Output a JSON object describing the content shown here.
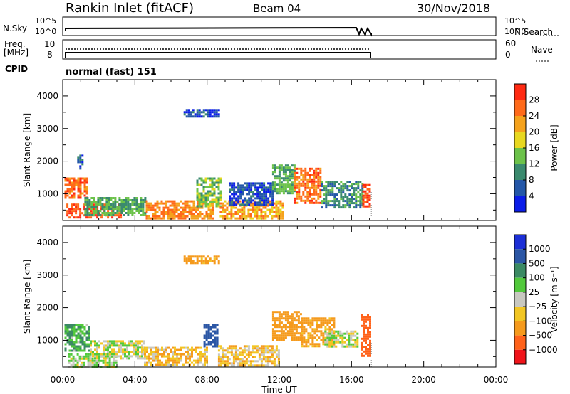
{
  "header": {
    "station": "Rankin Inlet (fitACF)",
    "beam": "Beam 04",
    "date": "30/Nov/2018"
  },
  "panels": {
    "nsky_label": "N.Sky",
    "nsearch_label": "N.Search",
    "freq_label": "Freq.",
    "freq_unit": "[MHz]",
    "nave_label": "Nave",
    "cpid_label": "CPID",
    "cpid_value": "normal (fast) 151",
    "left_ticks_top": [
      "10^5",
      "10^0"
    ],
    "right_ticks_top": [
      "10^5",
      "10^0"
    ],
    "left_ticks_freq": [
      "10",
      "8"
    ],
    "right_ticks_nave": [
      "60",
      "0"
    ]
  },
  "axes": {
    "xlabel": "Time UT",
    "xticks": [
      "00:00",
      "04:00",
      "08:00",
      "12:00",
      "16:00",
      "20:00",
      "00:00"
    ],
    "ylabel": "Slant Range [km]",
    "yticks": [
      "1000",
      "2000",
      "3000",
      "4000"
    ]
  },
  "power_bar": {
    "label": "Power [dB]",
    "ticks": [
      "4",
      "8",
      "12",
      "16",
      "20",
      "24",
      "28"
    ],
    "colors": [
      "#0b1de8",
      "#2457a8",
      "#3a8a6e",
      "#6cc24a",
      "#e8d820",
      "#f5a21c",
      "#ff6a1a",
      "#ff2a12"
    ]
  },
  "velocity_bar": {
    "label": "Velocity [m s⁻¹]",
    "ticks": [
      "1000",
      "500",
      "100",
      "25",
      "−25",
      "−100",
      "−500",
      "−1000"
    ],
    "colors": [
      "#1c2fd6",
      "#2b56a5",
      "#3b8a63",
      "#52c93c",
      "#c8c8c0",
      "#f2c623",
      "#f59a1c",
      "#ff621a",
      "#f0141a"
    ]
  },
  "chart_data": [
    {
      "type": "heatmap",
      "title": "Power",
      "xlabel": "Time UT",
      "ylabel": "Slant Range [km]",
      "xlim": [
        0,
        24
      ],
      "ylim": [
        180,
        4500
      ],
      "colorbar": "Power [dB]",
      "data_end_hour": 17.1,
      "blobs": [
        {
          "t0": 0.1,
          "t1": 1.3,
          "r0": 900,
          "r1": 1500,
          "v": 26
        },
        {
          "t0": 0.2,
          "t1": 3.2,
          "r0": 250,
          "r1": 700,
          "v": 28
        },
        {
          "t0": 1.2,
          "t1": 4.6,
          "r0": 350,
          "r1": 900,
          "v": 12
        },
        {
          "t0": 4.6,
          "t1": 8.3,
          "r0": 250,
          "r1": 800,
          "v": 24
        },
        {
          "t0": 7.4,
          "t1": 8.8,
          "r0": 600,
          "r1": 1500,
          "v": 14
        },
        {
          "t0": 8.7,
          "t1": 12.2,
          "r0": 250,
          "r1": 800,
          "v": 22
        },
        {
          "t0": 9.2,
          "t1": 11.6,
          "r0": 650,
          "r1": 1350,
          "v": 5
        },
        {
          "t0": 11.6,
          "t1": 12.8,
          "r0": 1000,
          "r1": 1900,
          "v": 12
        },
        {
          "t0": 12.8,
          "t1": 14.3,
          "r0": 700,
          "r1": 1800,
          "v": 26
        },
        {
          "t0": 14.3,
          "t1": 16.6,
          "r0": 600,
          "r1": 1400,
          "v": 10
        },
        {
          "t0": 16.6,
          "t1": 17.0,
          "r0": 600,
          "r1": 1300,
          "v": 28
        },
        {
          "t0": 6.7,
          "t1": 8.6,
          "r0": 3350,
          "r1": 3600,
          "v": 5
        },
        {
          "t0": 0.8,
          "t1": 1.1,
          "r0": 1750,
          "r1": 2200,
          "v": 5
        }
      ]
    },
    {
      "type": "heatmap",
      "title": "Velocity",
      "xlabel": "Time UT",
      "ylabel": "Slant Range [km]",
      "xlim": [
        0,
        24
      ],
      "ylim": [
        180,
        4500
      ],
      "colorbar": "Velocity [m s⁻¹]",
      "data_end_hour": 17.1,
      "blobs": [
        {
          "t0": 0.1,
          "t1": 1.5,
          "r0": 700,
          "r1": 1500,
          "v": 100
        },
        {
          "t0": 0.3,
          "t1": 3.0,
          "r0": 200,
          "r1": 600,
          "v": 20
        },
        {
          "t0": 1.5,
          "t1": 4.5,
          "r0": 450,
          "r1": 1000,
          "v": 0
        },
        {
          "t0": 4.5,
          "t1": 8.0,
          "r0": 250,
          "r1": 800,
          "v": -80
        },
        {
          "t0": 7.8,
          "t1": 8.6,
          "r0": 800,
          "r1": 1500,
          "v": 800
        },
        {
          "t0": 8.6,
          "t1": 12.0,
          "r0": 250,
          "r1": 850,
          "v": -60
        },
        {
          "t0": 11.6,
          "t1": 13.2,
          "r0": 1000,
          "r1": 1900,
          "v": -200
        },
        {
          "t0": 13.2,
          "t1": 15.0,
          "r0": 800,
          "r1": 1700,
          "v": -150
        },
        {
          "t0": 14.5,
          "t1": 16.3,
          "r0": 800,
          "r1": 1300,
          "v": 10
        },
        {
          "t0": 16.5,
          "t1": 17.0,
          "r0": 500,
          "r1": 1800,
          "v": -900
        },
        {
          "t0": 6.7,
          "t1": 8.6,
          "r0": 3350,
          "r1": 3600,
          "v": -150
        }
      ]
    }
  ]
}
